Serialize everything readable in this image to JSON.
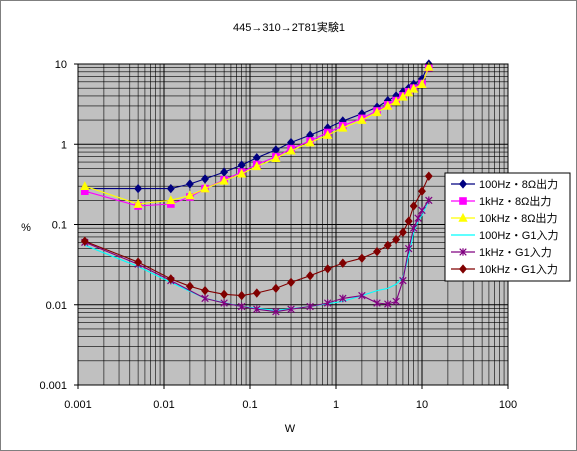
{
  "chart_data": {
    "type": "line",
    "title": "445→310→2T81実験1",
    "xlabel": "W",
    "ylabel": "%",
    "x_scale": "log",
    "y_scale": "log",
    "xlim": [
      0.001,
      100
    ],
    "ylim": [
      0.001,
      10
    ],
    "x_tick_labels": [
      "0.001",
      "0.01",
      "0.1",
      "1",
      "10",
      "100"
    ],
    "y_tick_labels": [
      "0.001",
      "0.01",
      "0.1",
      "1",
      "10"
    ],
    "grid": true,
    "plot_background": "#c0c0c0",
    "legend_position": "right",
    "series": [
      {
        "name": "100Hz・8Ω出力",
        "color": "#000080",
        "marker": "diamond",
        "x": [
          0.0012,
          0.005,
          0.012,
          0.02,
          0.03,
          0.05,
          0.08,
          0.12,
          0.2,
          0.3,
          0.5,
          0.8,
          1.2,
          2,
          3,
          4,
          5,
          6,
          7,
          8,
          10,
          12
        ],
        "y": [
          0.28,
          0.28,
          0.28,
          0.32,
          0.37,
          0.45,
          0.55,
          0.68,
          0.85,
          1.05,
          1.3,
          1.6,
          1.95,
          2.4,
          2.9,
          3.5,
          4.0,
          4.5,
          5.0,
          5.6,
          6.5,
          10.0
        ]
      },
      {
        "name": "1kHz・8Ω出力",
        "color": "#ff00ff",
        "marker": "square",
        "x": [
          0.0012,
          0.005,
          0.012,
          0.02,
          0.03,
          0.05,
          0.08,
          0.12,
          0.2,
          0.3,
          0.5,
          0.8,
          1.2,
          2,
          3,
          4,
          5,
          6,
          7,
          8,
          10,
          12
        ],
        "y": [
          0.26,
          0.17,
          0.18,
          0.22,
          0.28,
          0.36,
          0.45,
          0.56,
          0.7,
          0.88,
          1.1,
          1.4,
          1.7,
          2.1,
          2.6,
          3.1,
          3.5,
          4.0,
          4.5,
          5.0,
          5.7,
          9.0
        ]
      },
      {
        "name": "10kHz・8Ω出力",
        "color": "#ffff00",
        "marker": "triangle",
        "x": [
          0.0012,
          0.005,
          0.012,
          0.02,
          0.03,
          0.05,
          0.08,
          0.12,
          0.2,
          0.3,
          0.5,
          0.8,
          1.2,
          2,
          3,
          4,
          5,
          6,
          7,
          8,
          10,
          12
        ],
        "y": [
          0.3,
          0.18,
          0.2,
          0.23,
          0.28,
          0.35,
          0.43,
          0.53,
          0.67,
          0.83,
          1.05,
          1.3,
          1.6,
          2.0,
          2.5,
          3.0,
          3.4,
          3.9,
          4.4,
          4.9,
          5.6,
          9.2
        ]
      },
      {
        "name": "100Hz・G1入力",
        "color": "#00ffff",
        "marker": "none",
        "x": [
          0.0012,
          0.005,
          0.012,
          0.03,
          0.08,
          0.2,
          0.5,
          1.2,
          2,
          3,
          4,
          5,
          6,
          7,
          8,
          9,
          10,
          12
        ],
        "y": [
          0.055,
          0.03,
          0.019,
          0.012,
          0.0095,
          0.0085,
          0.0095,
          0.011,
          0.013,
          0.015,
          0.016,
          0.018,
          0.022,
          0.04,
          0.08,
          0.11,
          0.13,
          0.2
        ]
      },
      {
        "name": "1kHz・G1入力",
        "color": "#800080",
        "marker": "star",
        "x": [
          0.0012,
          0.005,
          0.012,
          0.03,
          0.05,
          0.08,
          0.12,
          0.2,
          0.3,
          0.5,
          0.8,
          1.2,
          2,
          3,
          4,
          5,
          6,
          7,
          8,
          9,
          10,
          12
        ],
        "y": [
          0.06,
          0.032,
          0.02,
          0.012,
          0.0105,
          0.0095,
          0.0088,
          0.0082,
          0.0088,
          0.0095,
          0.0105,
          0.012,
          0.013,
          0.0105,
          0.0102,
          0.011,
          0.02,
          0.05,
          0.09,
          0.12,
          0.15,
          0.2
        ]
      },
      {
        "name": "10kHz・G1入力",
        "color": "#800000",
        "marker": "diamond",
        "x": [
          0.0012,
          0.005,
          0.012,
          0.02,
          0.03,
          0.05,
          0.08,
          0.12,
          0.2,
          0.3,
          0.5,
          0.8,
          1.2,
          2,
          3,
          4,
          5,
          6,
          7,
          8,
          10,
          12
        ],
        "y": [
          0.062,
          0.034,
          0.021,
          0.017,
          0.015,
          0.0135,
          0.013,
          0.014,
          0.016,
          0.019,
          0.023,
          0.028,
          0.033,
          0.038,
          0.046,
          0.055,
          0.065,
          0.08,
          0.11,
          0.17,
          0.26,
          0.4
        ]
      }
    ]
  }
}
